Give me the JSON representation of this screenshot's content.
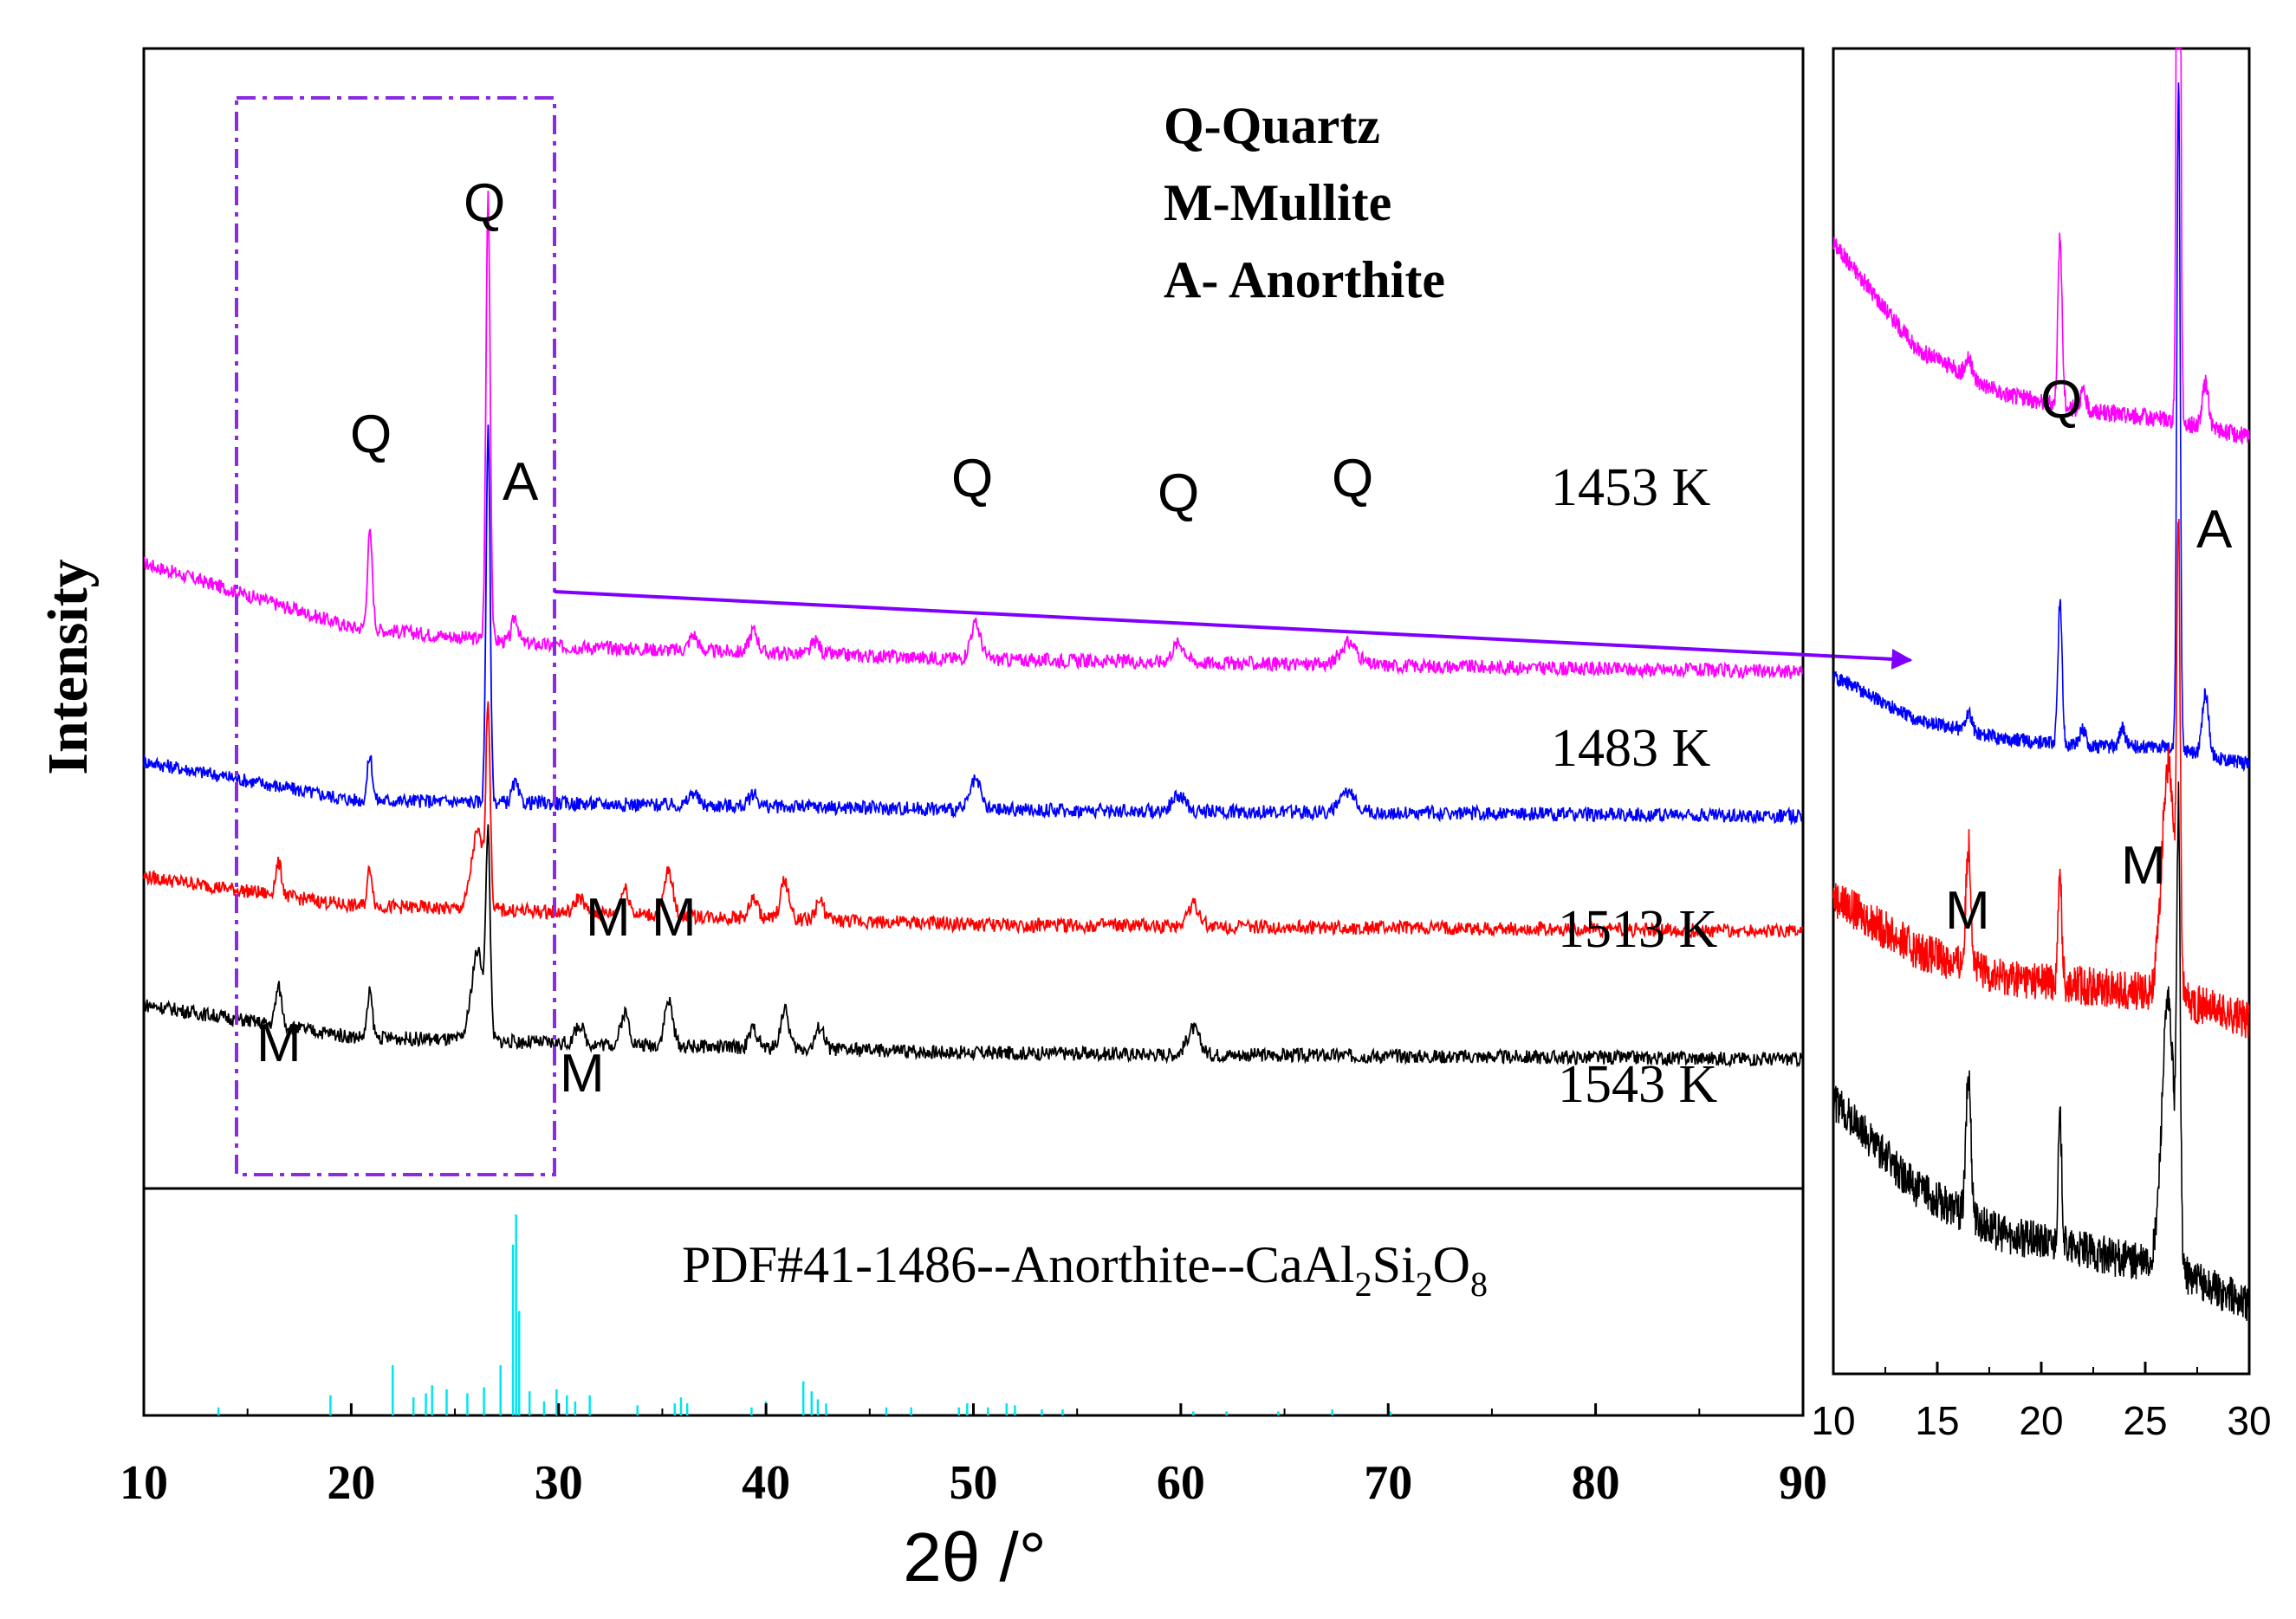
{
  "chart_data": [
    {
      "type": "line",
      "name": "main-xrd",
      "xlabel": "2θ /°",
      "ylabel": "Intensity",
      "xlim": [
        10,
        90
      ],
      "x_ticks": [
        10,
        20,
        30,
        40,
        50,
        60,
        70,
        80,
        90
      ],
      "legend_phases": [
        "Q-Quartz",
        "M-Mullite",
        "A- Anorthite"
      ],
      "series": [
        {
          "name": "1453 K",
          "color": "#ff00ff",
          "baseline": [
            [
              10,
              9.5
            ],
            [
              20,
              8.5
            ],
            [
              30,
              8.2
            ],
            [
              50,
              8.0
            ],
            [
              90,
              7.8
            ]
          ],
          "peaks": [
            [
              20.9,
              1.5,
              0.12
            ],
            [
              26.6,
              7.0,
              0.1
            ],
            [
              27.9,
              0.4,
              0.15
            ],
            [
              36.5,
              0.25,
              0.2
            ],
            [
              39.4,
              0.35,
              0.2
            ],
            [
              42.4,
              0.2,
              0.2
            ],
            [
              50.1,
              0.55,
              0.25
            ],
            [
              59.9,
              0.3,
              0.3
            ],
            [
              68.1,
              0.35,
              0.4
            ]
          ]
        },
        {
          "name": "1483 K",
          "color": "#0000ff",
          "baseline": [
            [
              10,
              6.4
            ],
            [
              20,
              5.8
            ],
            [
              30,
              5.75
            ],
            [
              50,
              5.65
            ],
            [
              90,
              5.55
            ]
          ],
          "peaks": [
            [
              20.9,
              0.7,
              0.12
            ],
            [
              26.6,
              5.8,
              0.1
            ],
            [
              27.9,
              0.3,
              0.15
            ],
            [
              36.5,
              0.2,
              0.2
            ],
            [
              39.4,
              0.2,
              0.2
            ],
            [
              50.1,
              0.45,
              0.25
            ],
            [
              59.9,
              0.25,
              0.3
            ],
            [
              68.1,
              0.3,
              0.4
            ]
          ]
        },
        {
          "name": "1513 K",
          "color": "#ff0000",
          "baseline": [
            [
              10,
              4.6
            ],
            [
              20,
              4.15
            ],
            [
              30,
              4.05
            ],
            [
              50,
              3.85
            ],
            [
              90,
              3.75
            ]
          ],
          "peaks": [
            [
              16.5,
              0.5,
              0.15
            ],
            [
              20.9,
              0.6,
              0.12
            ],
            [
              26.1,
              1.2,
              0.3
            ],
            [
              26.6,
              3.0,
              0.1
            ],
            [
              31.0,
              0.25,
              0.2
            ],
            [
              33.2,
              0.4,
              0.2
            ],
            [
              35.3,
              0.7,
              0.2
            ],
            [
              39.4,
              0.3,
              0.2
            ],
            [
              40.9,
              0.6,
              0.2
            ],
            [
              42.6,
              0.3,
              0.2
            ],
            [
              60.6,
              0.35,
              0.3
            ]
          ]
        },
        {
          "name": "1543 K",
          "color": "#000000",
          "baseline": [
            [
              10,
              2.6
            ],
            [
              20,
              2.1
            ],
            [
              30,
              2.0
            ],
            [
              50,
              1.85
            ],
            [
              90,
              1.75
            ]
          ],
          "peaks": [
            [
              16.5,
              0.6,
              0.15
            ],
            [
              20.9,
              0.7,
              0.12
            ],
            [
              26.1,
              1.4,
              0.3
            ],
            [
              26.6,
              3.0,
              0.1
            ],
            [
              31.0,
              0.3,
              0.2
            ],
            [
              33.2,
              0.5,
              0.2
            ],
            [
              35.3,
              0.7,
              0.2
            ],
            [
              39.4,
              0.3,
              0.2
            ],
            [
              40.9,
              0.6,
              0.2
            ],
            [
              42.6,
              0.35,
              0.2
            ],
            [
              60.6,
              0.4,
              0.3
            ]
          ]
        }
      ],
      "annotations": [
        "Q",
        "Q",
        "A",
        "Q",
        "Q",
        "Q",
        "M",
        "M",
        "M",
        "M"
      ]
    },
    {
      "type": "bar",
      "name": "reference-pattern",
      "title": "PDF#41-1486--Anorthite--CaAl2Si2O8",
      "color": "#00e5ee",
      "x": [
        13.6,
        19.0,
        22.0,
        23.0,
        23.6,
        23.9,
        24.6,
        25.6,
        26.4,
        27.2,
        27.8,
        27.95,
        28.1,
        28.6,
        29.3,
        29.9,
        30.4,
        30.8,
        31.5,
        33.8,
        35.6,
        35.9,
        36.2,
        39.3,
        40.0,
        41.8,
        42.2,
        42.5,
        42.9,
        45.8,
        47.0,
        49.3,
        49.7,
        50.7,
        51.6,
        52.0,
        53.3,
        54.3,
        60.6,
        62.2,
        64.7,
        67.3,
        70.1
      ],
      "values": [
        4,
        10,
        25,
        9,
        11,
        15,
        13,
        11,
        14,
        25,
        85,
        100,
        52,
        12,
        7,
        13,
        10,
        7,
        10,
        5,
        6,
        9,
        6,
        4,
        7,
        17,
        12,
        8,
        6,
        4,
        4,
        4,
        6,
        4,
        6,
        5,
        3,
        3,
        2,
        2,
        2,
        3,
        2
      ],
      "xlim": [
        10,
        90
      ],
      "ylim": [
        0,
        100
      ]
    },
    {
      "type": "line",
      "name": "inset-zoom",
      "xlim": [
        10,
        30
      ],
      "x_ticks": [
        10,
        15,
        20,
        25,
        30
      ],
      "annotations": [
        "Q",
        "A",
        "M",
        "M"
      ],
      "series_colors": [
        "#ff00ff",
        "#0000ff",
        "#ff0000",
        "#000000"
      ]
    }
  ],
  "labels": {
    "legend_q": "Q-Quartz",
    "legend_m": "M-Mullite",
    "legend_a": "A- Anorthite",
    "s1453": "1453 K",
    "s1483": "1483 K",
    "s1513": "1513 K",
    "s1543": "1543 K",
    "ylabel": "Intensity",
    "xlabel": "2θ /°",
    "pdf_prefix": "PDF#41-1486--Anorthite--CaAl",
    "pdf_sub1": "2",
    "pdf_si": "Si",
    "pdf_sub2": "2",
    "pdf_o": "O",
    "pdf_sub3": "8",
    "q": "Q",
    "m": "M",
    "a": "A"
  }
}
